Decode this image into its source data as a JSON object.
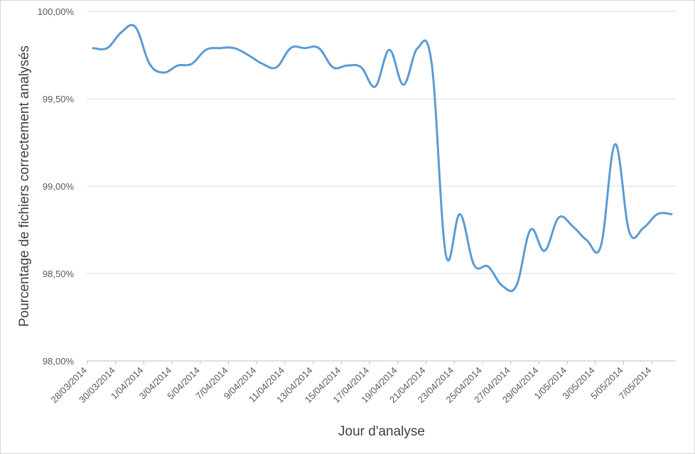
{
  "chart_data": {
    "type": "line",
    "title": "",
    "xlabel": "Jour d'analyse",
    "ylabel": "Pourcentage de fichiers correctement analysés",
    "ylim": [
      98.0,
      100.0
    ],
    "y_ticks": [
      "98,00%",
      "98,50%",
      "99,00%",
      "99,50%",
      "100,00%"
    ],
    "y_tick_values": [
      98.0,
      98.5,
      99.0,
      99.5,
      100.0
    ],
    "x_tick_labels": [
      "28/03/2014",
      "30/03/2014",
      "1/04/2014",
      "3/04/2014",
      "5/04/2014",
      "7/04/2014",
      "9/04/2014",
      "11/04/2014",
      "13/04/2014",
      "15/04/2014",
      "17/04/2014",
      "19/04/2014",
      "21/04/2014",
      "23/04/2014",
      "25/04/2014",
      "27/04/2014",
      "29/04/2014",
      "1/05/2014",
      "3/05/2014",
      "5/05/2014",
      "7/05/2014"
    ],
    "grid": true,
    "line_color": "#5b9bd5",
    "series": [
      {
        "x": [
          "28/03/2014",
          "29/03/2014",
          "30/03/2014",
          "31/03/2014",
          "1/04/2014",
          "2/04/2014",
          "3/04/2014",
          "4/04/2014",
          "5/04/2014",
          "6/04/2014",
          "7/04/2014",
          "8/04/2014",
          "9/04/2014",
          "10/04/2014",
          "11/04/2014",
          "12/04/2014",
          "13/04/2014",
          "14/04/2014",
          "15/04/2014",
          "16/04/2014",
          "17/04/2014",
          "18/04/2014",
          "19/04/2014",
          "20/04/2014",
          "21/04/2014",
          "22/04/2014",
          "23/04/2014",
          "24/04/2014",
          "25/04/2014",
          "26/04/2014",
          "27/04/2014",
          "28/04/2014",
          "29/04/2014",
          "30/04/2014",
          "1/05/2014",
          "2/05/2014",
          "3/05/2014",
          "4/05/2014",
          "5/05/2014",
          "6/05/2014",
          "7/05/2014",
          "8/05/2014"
        ],
        "values": [
          99.79,
          99.79,
          99.88,
          99.91,
          99.7,
          99.65,
          99.69,
          99.7,
          99.78,
          99.79,
          99.79,
          99.75,
          99.7,
          99.68,
          99.79,
          99.79,
          99.79,
          99.68,
          99.69,
          99.68,
          99.57,
          99.78,
          99.58,
          99.79,
          99.7,
          98.61,
          98.84,
          98.55,
          98.54,
          98.43,
          98.43,
          98.75,
          98.63,
          98.82,
          98.77,
          98.69,
          98.66,
          99.24,
          98.74,
          98.76,
          98.84,
          98.84
        ]
      }
    ]
  }
}
